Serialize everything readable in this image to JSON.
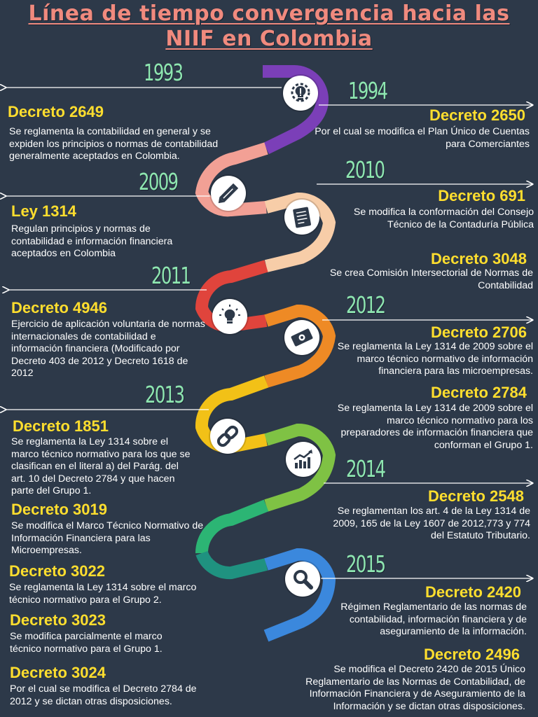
{
  "title_line1": "Línea de tiempo convergencia hacia las",
  "title_line2": "NIIF en Colombia",
  "years": {
    "y1993": "1993",
    "y1994": "1994",
    "y2009": "2009",
    "y2010": "2010",
    "y2011": "2011",
    "y2012": "2012",
    "y2013": "2013",
    "y2014": "2014",
    "y2015": "2015"
  },
  "left_items": [
    {
      "title": "Decreto 2649",
      "desc": "Se reglamenta la contabilidad en general y se expiden los principios o normas de contabilidad generalmente aceptados en Colombia."
    },
    {
      "title": "Ley 1314",
      "desc": "Regulan principios y normas de contabilidad e información financiera aceptados en Colombia"
    },
    {
      "title": "Decreto 4946",
      "desc": "Ejercicio de aplicación voluntaria de normas internacionales de contabilidad e información financiera (Modificado por Decreto 403 de 2012 y Decreto 1618 de 2012"
    },
    {
      "title": "Decreto 1851",
      "desc": "Se reglamenta la Ley 1314 sobre el marco técnico normativo para los que se clasifican en el literal a) del Parág. del art. 10 del Decreto 2784 y que hacen parte del Grupo 1."
    },
    {
      "title": "Decreto 3019",
      "desc": "Se modifica el Marco Técnico Normativo de Información Financiera para las Microempresas."
    },
    {
      "title": "Decreto 3022",
      "desc": "Se reglamenta la Ley 1314 sobre el marco técnico normativo para el Grupo 2."
    },
    {
      "title": "Decreto 3023",
      "desc": "Se modifica parcialmente el marco técnico normativo para el Grupo 1."
    },
    {
      "title": "Decreto 3024",
      "desc": "Por el cual se modifica el Decreto 2784 de 2012 y se dictan otras disposiciones."
    }
  ],
  "right_items": [
    {
      "title": "Decreto 2650",
      "desc": "Por el cual se modifica el Plan Único de Cuentas para Comerciantes"
    },
    {
      "title": "Decreto 691",
      "desc": "Se modifica la conformación del Consejo Técnico de la Contaduría Pública"
    },
    {
      "title": "Decreto 3048",
      "desc": "Se crea Comisión Intersectorial de Normas de Contabilidad"
    },
    {
      "title": "Decreto 2706",
      "desc": "Se reglamenta la Ley 1314 de 2009 sobre el marco técnico normativo de información financiera para las microempresas."
    },
    {
      "title": "Decreto 2784",
      "desc": "Se reglamenta la Ley 1314 de 2009 sobre el marco técnico normativo para los preparadores de información financiera que conforman el Grupo 1."
    },
    {
      "title": "Decreto 2548",
      "desc": "Se reglamentan los art. 4 de la Ley 1314 de 2009, 165 de la Ley 1607 de 2012,773 y 774 del Estatuto Tributario."
    },
    {
      "title": "Decreto 2420",
      "desc": "Régimen Reglamentario de las normas de contabilidad, información financiera y de aseguramiento de la información."
    },
    {
      "title": "Decreto 2496",
      "desc": "Se modifica el Decreto 2420 de 2015 Único Reglamentario de las Normas de Contabilidad, de Información Financiera y de Aseguramiento de la Información y se dictan otras disposiciones."
    }
  ],
  "icons": [
    "lightbulb-gear-icon",
    "pencil-icon",
    "document-checklist-icon",
    "lightbulb-icon",
    "money-icon",
    "link-icon",
    "growth-chart-icon",
    "magnifier-icon"
  ],
  "colors": {
    "background": "#2d3949",
    "title": "#f08a7e",
    "year": "#8ee6b0",
    "decree_title": "#ffde2e",
    "text": "#ffffff",
    "road": [
      "#7b3fb8",
      "#f2a095",
      "#f7cda8",
      "#e0443c",
      "#ee8a25",
      "#f2c117",
      "#7fc244",
      "#2cb574",
      "#1f9280",
      "#3b88dd"
    ]
  }
}
